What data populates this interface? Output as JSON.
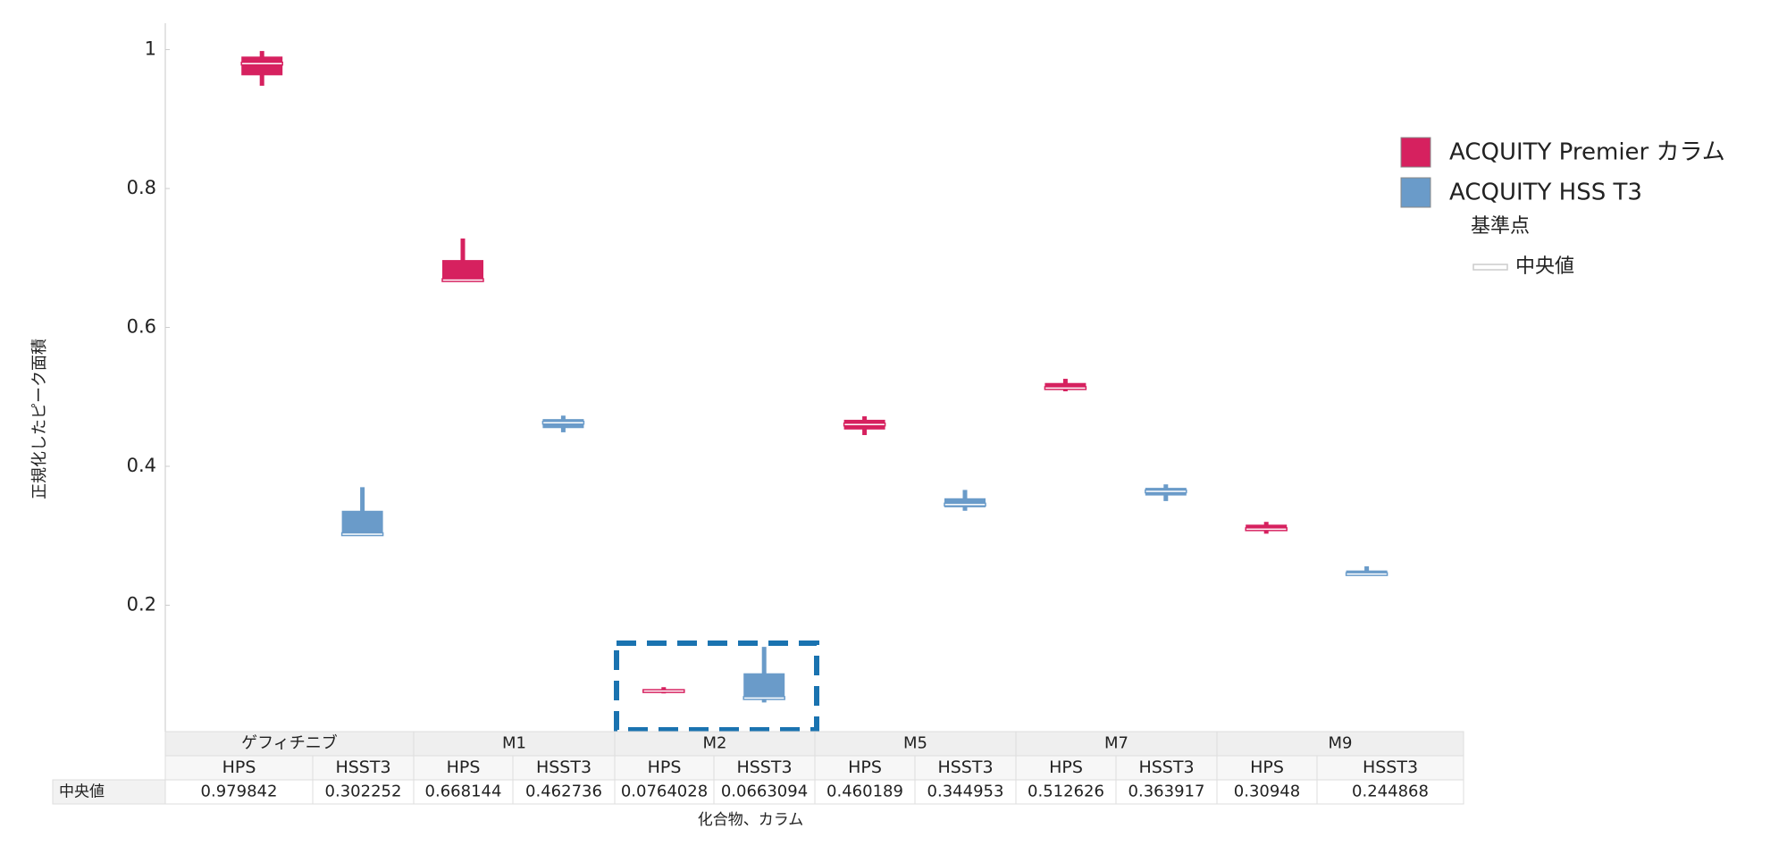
{
  "chart_data": {
    "type": "box",
    "y_label": "正規化したピーク面積",
    "x_label": "化合物、カラム",
    "ylim": [
      0.018,
      1.038
    ],
    "yticks": [
      0.2,
      0.4,
      0.6,
      0.8,
      1
    ],
    "categories": [
      "ゲフィチニブ",
      "M1",
      "M2",
      "M5",
      "M7",
      "M9"
    ],
    "subcategories": [
      [
        "HPS",
        "HSST3"
      ],
      [
        "HPS",
        "HSST3"
      ],
      [
        "HPS",
        "HSST3"
      ],
      [
        "HPS",
        "HSST3"
      ],
      [
        "HPS",
        "HSST3"
      ],
      [
        "HPS",
        "HSST3"
      ]
    ],
    "table_row_label": "中央値",
    "legend_title": "基準点",
    "legend_median": "中央値",
    "series": [
      {
        "name": "ACQUITY Premier カラム",
        "color": "#d6215f",
        "low": [
          0.948,
          0.668,
          0.073,
          0.445,
          0.508,
          0.303
        ],
        "q1": [
          0.963,
          0.67,
          0.075,
          0.453,
          0.511,
          0.307
        ],
        "median": [
          0.979842,
          0.668144,
          0.0764028,
          0.460189,
          0.512626,
          0.30948
        ],
        "q3": [
          0.99,
          0.697,
          0.079,
          0.467,
          0.52,
          0.316
        ],
        "high": [
          0.998,
          0.728,
          0.082,
          0.472,
          0.526,
          0.32
        ]
      },
      {
        "name": "ACQUITY HSS T3",
        "color": "#6a9bc9",
        "low": [
          0.3,
          0.449,
          0.06,
          0.336,
          0.35,
          0.246
        ],
        "q1": [
          0.304,
          0.455,
          0.067,
          0.341,
          0.358,
          0.247
        ],
        "median": [
          0.302252,
          0.462736,
          0.0663094,
          0.344953,
          0.363917,
          0.244868
        ],
        "q3": [
          0.336,
          0.468,
          0.102,
          0.354,
          0.369,
          0.25
        ],
        "high": [
          0.37,
          0.473,
          0.14,
          0.366,
          0.374,
          0.256
        ]
      }
    ]
  }
}
